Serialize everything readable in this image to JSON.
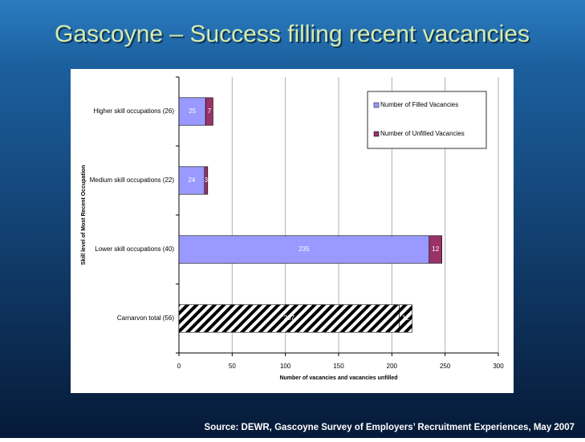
{
  "title": "Gascoyne – Success filling recent vacancies",
  "source": "Source: DEWR, Gascoyne Survey of Employers’ Recruitment Experiences, May 2007",
  "chart_data": {
    "type": "hbar_stacked",
    "categories": [
      "Higher skill occupations (26)",
      "Medium skill occupations (22)",
      "Lower skill occupations (40)",
      "Carnarvon total (56)"
    ],
    "series": [
      {
        "name": "Number of Filled Vacancies",
        "color": "#9999ff",
        "values": [
          25,
          24,
          235,
          207
        ]
      },
      {
        "name": "Number of Unfilled Vacancies",
        "color": "#993366",
        "values": [
          7,
          3,
          12,
          12
        ]
      }
    ],
    "hatch": [
      false,
      false,
      false,
      true
    ],
    "xlim": [
      0,
      300
    ],
    "xticks": [
      0,
      50,
      100,
      150,
      200,
      250,
      300
    ],
    "xlabel": "Number of vacancies and vacancies unfilled",
    "ylabel": "Skill level of Most Recent Occupation",
    "grid": true,
    "legend": "top-right"
  }
}
